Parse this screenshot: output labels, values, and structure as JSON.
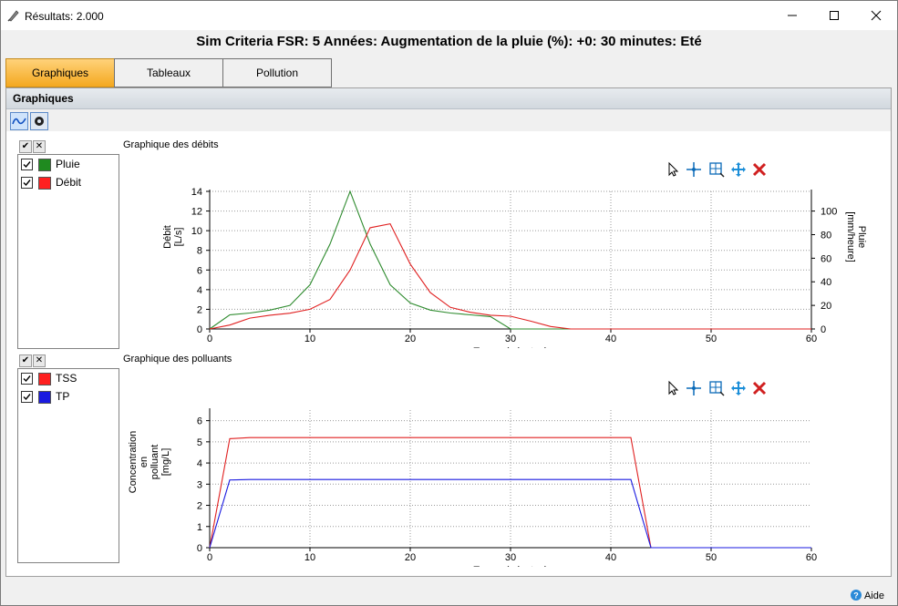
{
  "window": {
    "title": "Résultats: 2.000",
    "subtitle": "Sim Criteria FSR: 5 Années: Augmentation de la pluie (%): +0: 30 minutes: Eté"
  },
  "tabs": [
    "Graphiques",
    "Tableaux",
    "Pollution"
  ],
  "section": {
    "title": "Graphiques"
  },
  "footer": {
    "help_label": "Aide"
  },
  "colors": {
    "accent_tab": "#f4a81f",
    "green": "#2e8b2e",
    "red": "#e02020",
    "blue": "#1a1ae0"
  },
  "icons": [
    "chart-line-icon",
    "settings-icon",
    "pointer-icon",
    "crosshair-icon",
    "zoom-icon",
    "pan-icon",
    "delete-icon"
  ],
  "chart1": {
    "legend": [
      {
        "label": "Pluie",
        "color": "#1f8a1f",
        "checked": true
      },
      {
        "label": "Débit",
        "color": "#ff2020",
        "checked": true
      }
    ]
  },
  "chart2": {
    "legend": [
      {
        "label": "TSS",
        "color": "#ff2020",
        "checked": true
      },
      {
        "label": "TP",
        "color": "#1a1ae0",
        "checked": true
      }
    ]
  },
  "chart_data": [
    {
      "type": "line",
      "title": "Graphique des débits",
      "xlabel": "Temps (minutes)",
      "ylabel": "Débit\n[L/s]",
      "y2label": "Pluie\n[mm/heure]",
      "xlim": [
        0,
        60
      ],
      "ylim": [
        0,
        14
      ],
      "y2lim": [
        0,
        116.7
      ],
      "xticks": [
        0,
        10,
        20,
        30,
        40,
        50,
        60
      ],
      "yticks": [
        0,
        2,
        4,
        6,
        8,
        10,
        12,
        14
      ],
      "y2ticks": [
        0,
        20,
        40,
        60,
        80,
        100
      ],
      "grid": true,
      "series": [
        {
          "name": "Pluie",
          "axis": "right",
          "color": "#2e8b2e",
          "x": [
            0,
            2,
            4,
            6,
            8,
            10,
            12,
            14,
            16,
            18,
            20,
            22,
            24,
            26,
            28,
            30,
            32,
            34,
            36,
            60
          ],
          "y": [
            0,
            12,
            13.5,
            16,
            20,
            37.5,
            72,
            116.7,
            72,
            37.5,
            22,
            16,
            13.5,
            12,
            10.5,
            0,
            0,
            0,
            0,
            0
          ]
        },
        {
          "name": "Débit",
          "axis": "left",
          "color": "#e02020",
          "x": [
            0,
            2,
            4,
            6,
            8,
            10,
            12,
            14,
            16,
            18,
            20,
            22,
            24,
            26,
            28,
            30,
            32,
            34,
            36,
            60
          ],
          "y": [
            0,
            0.4,
            1.1,
            1.4,
            1.6,
            2.0,
            3.0,
            6.0,
            10.3,
            10.7,
            6.6,
            3.7,
            2.2,
            1.7,
            1.4,
            1.3,
            0.8,
            0.25,
            0,
            0
          ]
        }
      ]
    },
    {
      "type": "line",
      "title": "Graphique des polluants",
      "xlabel": "Temps (minutes)",
      "ylabel": "Concentration\nen\npolluant\n[mg/L]",
      "xlim": [
        0,
        60
      ],
      "ylim": [
        0,
        6.5
      ],
      "xticks": [
        0,
        10,
        20,
        30,
        40,
        50,
        60
      ],
      "yticks": [
        0,
        1,
        2,
        3,
        4,
        5,
        6
      ],
      "grid": true,
      "series": [
        {
          "name": "TSS",
          "color": "#e02020",
          "x": [
            0,
            2,
            4,
            42,
            44,
            60
          ],
          "y": [
            0,
            5.15,
            5.2,
            5.2,
            0,
            0
          ]
        },
        {
          "name": "TP",
          "color": "#1a1ae0",
          "x": [
            0,
            2,
            4,
            42,
            44,
            60
          ],
          "y": [
            0,
            3.2,
            3.22,
            3.22,
            0,
            0
          ]
        }
      ]
    }
  ]
}
